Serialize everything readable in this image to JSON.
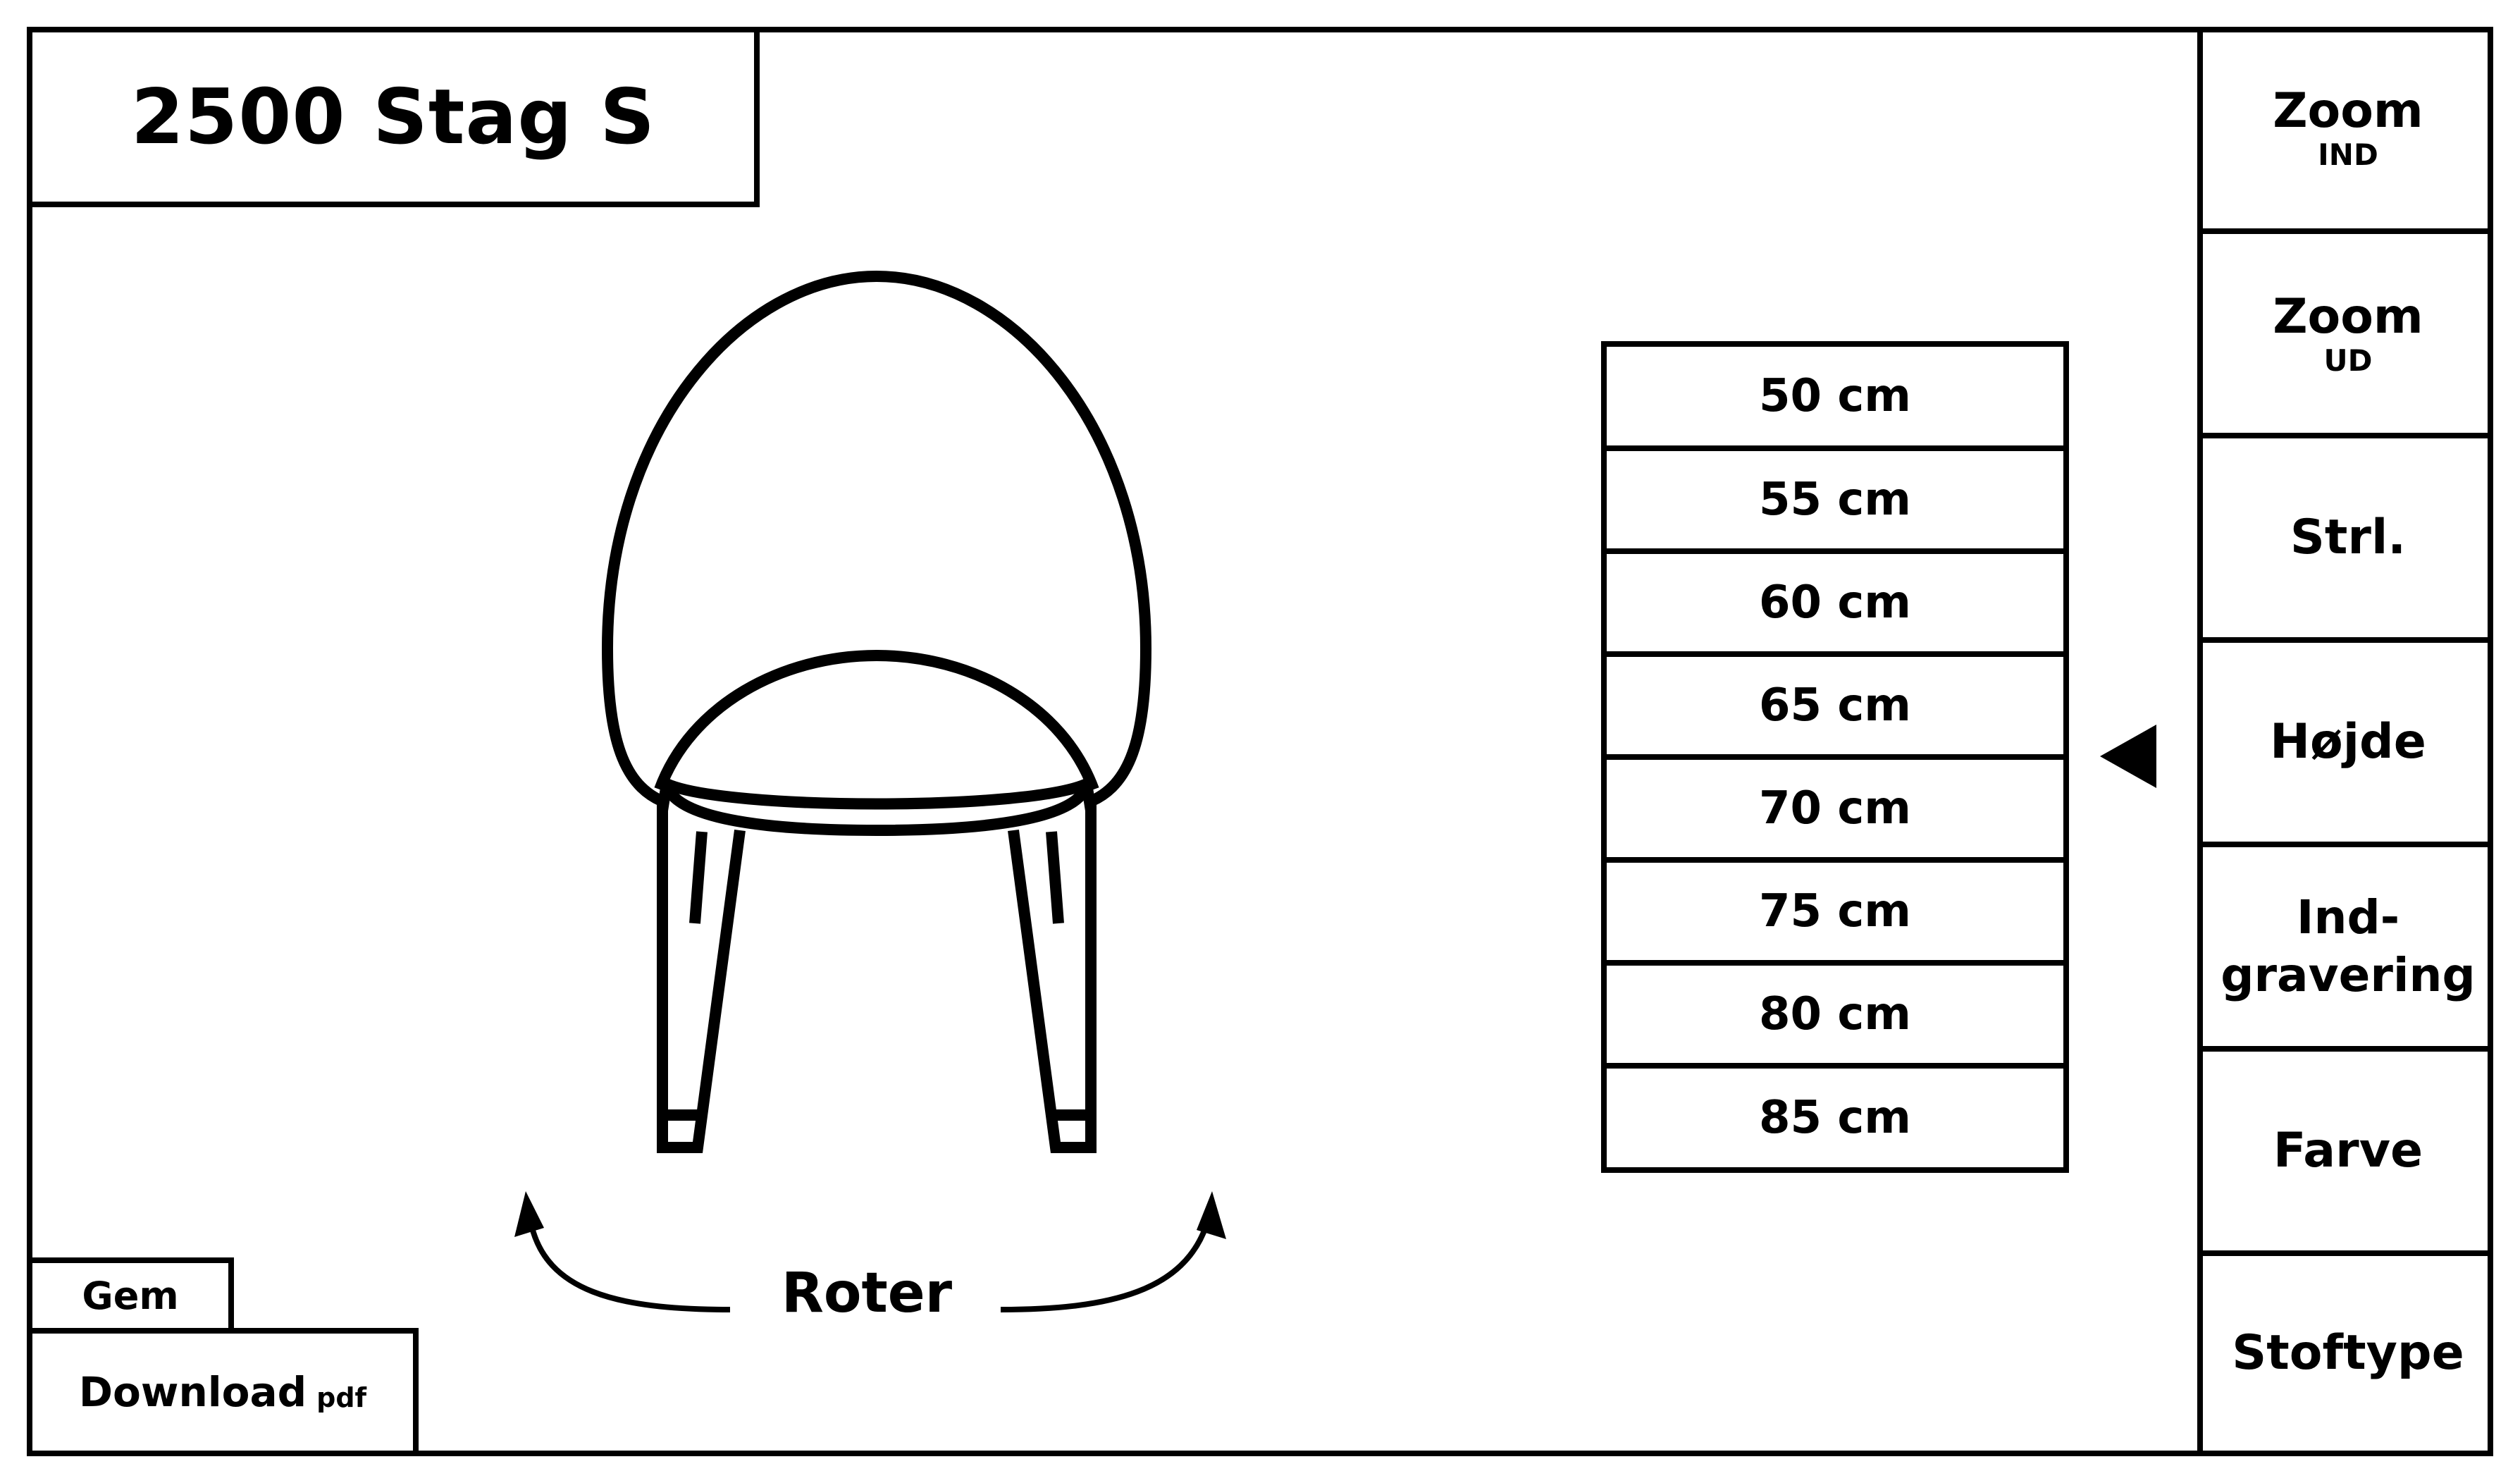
{
  "header": {
    "title": "2500 Stag S"
  },
  "sidebar": {
    "zoom_in": {
      "main": "Zoom",
      "sub": "IND"
    },
    "zoom_out": {
      "main": "Zoom",
      "sub": "UD"
    },
    "size": "Strl.",
    "height": "Højde",
    "engraving": {
      "line1": "Ind-",
      "line2": "gravering"
    },
    "color": "Farve",
    "fabric": "Stoftype"
  },
  "height_options": [
    "50 cm",
    "55 cm",
    "60 cm",
    "65 cm",
    "70 cm",
    "75 cm",
    "80 cm",
    "85 cm"
  ],
  "rotate": {
    "label": "Roter"
  },
  "actions": {
    "save": "Gem",
    "download": "Download",
    "download_format": "pdf"
  },
  "icons": {
    "height_pointer": "triangle-left-icon",
    "rotate_arrows": "curved-arrow-icon",
    "product": "chair-illustration"
  },
  "colors": {
    "stroke": "#000000",
    "background": "#ffffff"
  }
}
